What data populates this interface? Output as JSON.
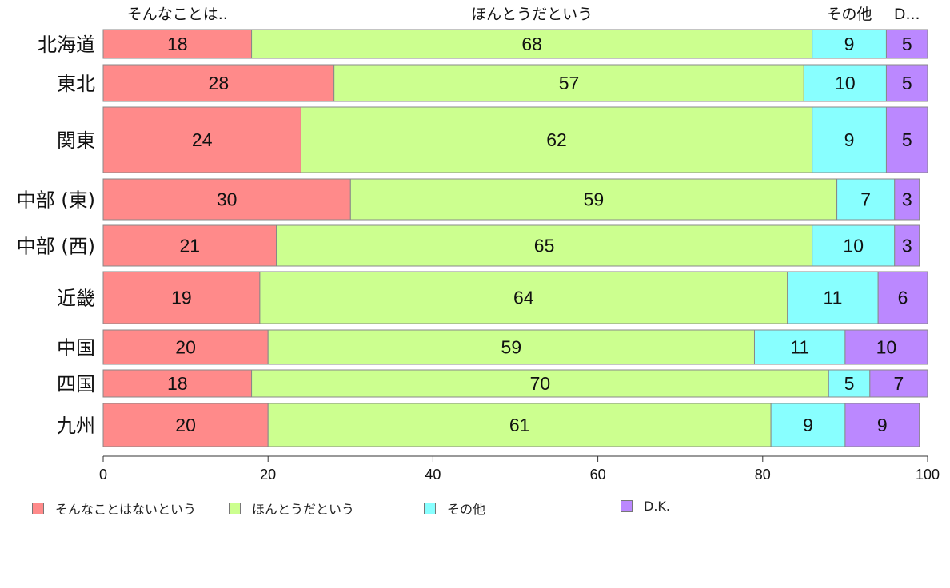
{
  "chart_data": {
    "type": "bar",
    "orientation": "horizontal",
    "stacked": true,
    "categories": [
      "北海道",
      "東北",
      "関東",
      "中部 (東)",
      "中部 (西)",
      "近畿",
      "中国",
      "四国",
      "九州"
    ],
    "series": [
      {
        "name": "そんなことはないという",
        "top_label": "そんなことは..",
        "color": "#ff8a8a",
        "values": [
          18,
          28,
          24,
          30,
          21,
          19,
          20,
          18,
          20
        ]
      },
      {
        "name": "ほんとうだという",
        "top_label": "ほんとうだという",
        "color": "#ccff8f",
        "values": [
          68,
          57,
          62,
          59,
          65,
          64,
          59,
          70,
          61
        ]
      },
      {
        "name": "その他",
        "top_label": "その他",
        "color": "#88ffff",
        "values": [
          9,
          10,
          9,
          7,
          10,
          11,
          11,
          5,
          9
        ]
      },
      {
        "name": "D.K.",
        "top_label": "D...",
        "color": "#bb88ff",
        "values": [
          5,
          5,
          5,
          3,
          3,
          6,
          10,
          7,
          9
        ]
      }
    ],
    "xlim": [
      0,
      100
    ],
    "xticks": [
      0,
      20,
      40,
      60,
      80,
      100
    ],
    "legend_position": "bottom",
    "grid": false,
    "title": "",
    "xlabel": "",
    "ylabel": ""
  }
}
